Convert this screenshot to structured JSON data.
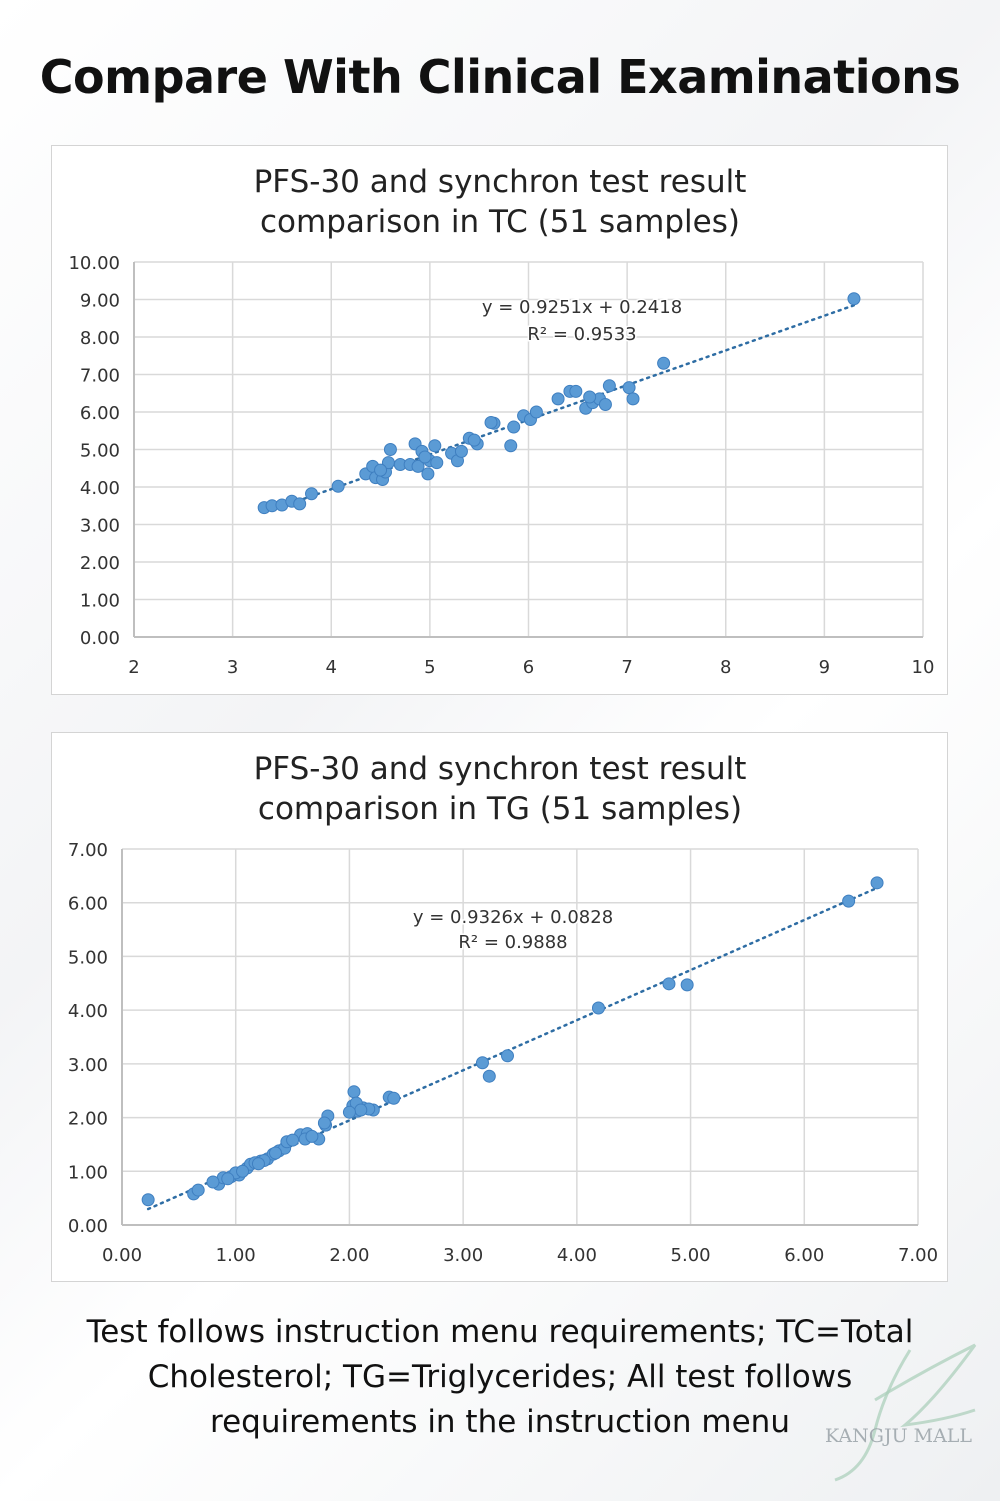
{
  "page_title": "Compare With Clinical Examinations",
  "footer_lines": [
    "Test follows instruction menu requirements; TC=Total",
    "Cholesterol; TG=Triglycerides; All test follows",
    "requirements in the instruction menu"
  ],
  "logo_text": "KANGJU MALL",
  "colors": {
    "point": "#5b9bd5",
    "point_edge": "#3f7fc0",
    "trend": "#2e6da4",
    "grid": "#d9d9d9"
  },
  "chart_data": [
    {
      "type": "scatter",
      "title_lines": [
        "PFS-30 and synchron test result",
        "comparison in TC (51 samples)"
      ],
      "xlim": [
        2,
        10
      ],
      "ylim": [
        0,
        10
      ],
      "xticks": [
        "2",
        "3",
        "4",
        "5",
        "6",
        "7",
        "8",
        "9",
        "10"
      ],
      "yticks": [
        "0.00",
        "1.00",
        "2.00",
        "3.00",
        "4.00",
        "5.00",
        "6.00",
        "7.00",
        "8.00",
        "9.00",
        "10.00"
      ],
      "xtick_values": [
        2,
        3,
        4,
        5,
        6,
        7,
        8,
        9,
        10
      ],
      "ytick_values": [
        0,
        1,
        2,
        3,
        4,
        5,
        6,
        7,
        8,
        9,
        10
      ],
      "grid": true,
      "legend": "none",
      "trendline": {
        "slope": 0.9251,
        "intercept": 0.2418,
        "style": "dotted"
      },
      "equation": "y = 0.9251x + 0.2418",
      "r_squared": "R² = 0.9533",
      "points": [
        [
          3.32,
          3.45
        ],
        [
          3.4,
          3.5
        ],
        [
          3.5,
          3.52
        ],
        [
          3.6,
          3.62
        ],
        [
          3.68,
          3.55
        ],
        [
          3.8,
          3.82
        ],
        [
          4.07,
          4.02
        ],
        [
          4.35,
          4.35
        ],
        [
          4.42,
          4.55
        ],
        [
          4.45,
          4.25
        ],
        [
          4.52,
          4.2
        ],
        [
          4.55,
          4.4
        ],
        [
          4.58,
          4.65
        ],
        [
          4.6,
          5.0
        ],
        [
          4.7,
          4.6
        ],
        [
          4.8,
          4.6
        ],
        [
          4.85,
          5.15
        ],
        [
          4.88,
          4.55
        ],
        [
          4.92,
          4.95
        ],
        [
          4.98,
          4.35
        ],
        [
          5.0,
          4.7
        ],
        [
          5.05,
          5.1
        ],
        [
          5.07,
          4.65
        ],
        [
          5.22,
          4.9
        ],
        [
          5.28,
          4.7
        ],
        [
          5.32,
          4.95
        ],
        [
          5.4,
          5.3
        ],
        [
          5.48,
          5.15
        ],
        [
          5.65,
          5.7
        ],
        [
          5.82,
          5.1
        ],
        [
          5.85,
          5.6
        ],
        [
          5.95,
          5.9
        ],
        [
          6.02,
          5.8
        ],
        [
          6.08,
          6.0
        ],
        [
          6.3,
          6.35
        ],
        [
          6.42,
          6.55
        ],
        [
          6.48,
          6.55
        ],
        [
          6.58,
          6.1
        ],
        [
          6.65,
          6.25
        ],
        [
          6.72,
          6.35
        ],
        [
          6.78,
          6.2
        ],
        [
          6.82,
          6.7
        ],
        [
          7.02,
          6.65
        ],
        [
          7.06,
          6.35
        ],
        [
          7.37,
          7.3
        ],
        [
          9.3,
          9.02
        ],
        [
          4.5,
          4.45
        ],
        [
          4.95,
          4.8
        ],
        [
          5.45,
          5.25
        ],
        [
          6.62,
          6.4
        ],
        [
          5.62,
          5.72
        ]
      ]
    },
    {
      "type": "scatter",
      "title_lines": [
        "PFS-30 and synchron test result",
        "comparison in TG (51 samples)"
      ],
      "xlim": [
        0,
        7
      ],
      "ylim": [
        0,
        7
      ],
      "xticks": [
        "0.00",
        "1.00",
        "2.00",
        "3.00",
        "4.00",
        "5.00",
        "6.00",
        "7.00"
      ],
      "yticks": [
        "0.00",
        "1.00",
        "2.00",
        "3.00",
        "4.00",
        "5.00",
        "6.00",
        "7.00"
      ],
      "xtick_values": [
        0,
        1,
        2,
        3,
        4,
        5,
        6,
        7
      ],
      "ytick_values": [
        0,
        1,
        2,
        3,
        4,
        5,
        6,
        7
      ],
      "grid": true,
      "legend": "none",
      "trendline": {
        "slope": 0.9326,
        "intercept": 0.0828,
        "style": "dotted"
      },
      "equation": "y = 0.9326x + 0.0828",
      "r_squared": "R² = 0.9888",
      "points": [
        [
          0.23,
          0.47
        ],
        [
          0.63,
          0.58
        ],
        [
          0.67,
          0.65
        ],
        [
          0.85,
          0.76
        ],
        [
          0.89,
          0.88
        ],
        [
          0.96,
          0.9
        ],
        [
          1.03,
          0.93
        ],
        [
          1.1,
          1.06
        ],
        [
          1.13,
          1.13
        ],
        [
          1.22,
          1.19
        ],
        [
          1.28,
          1.23
        ],
        [
          1.33,
          1.32
        ],
        [
          1.38,
          1.38
        ],
        [
          1.43,
          1.43
        ],
        [
          1.45,
          1.55
        ],
        [
          1.57,
          1.68
        ],
        [
          1.63,
          1.7
        ],
        [
          1.61,
          1.6
        ],
        [
          1.73,
          1.6
        ],
        [
          1.79,
          1.86
        ],
        [
          1.81,
          2.03
        ],
        [
          2.04,
          2.48
        ],
        [
          2.03,
          2.22
        ],
        [
          2.07,
          2.12
        ],
        [
          2.12,
          2.18
        ],
        [
          2.21,
          2.14
        ],
        [
          2.35,
          2.38
        ],
        [
          2.39,
          2.36
        ],
        [
          3.17,
          3.02
        ],
        [
          3.23,
          2.77
        ],
        [
          3.39,
          3.15
        ],
        [
          4.19,
          4.04
        ],
        [
          4.81,
          4.49
        ],
        [
          4.97,
          4.47
        ],
        [
          6.39,
          6.03
        ],
        [
          6.64,
          6.37
        ],
        [
          0.8,
          0.8
        ],
        [
          1.0,
          0.97
        ],
        [
          1.06,
          1.0
        ],
        [
          1.17,
          1.16
        ],
        [
          1.25,
          1.2
        ],
        [
          1.35,
          1.34
        ],
        [
          1.5,
          1.58
        ],
        [
          1.67,
          1.65
        ],
        [
          1.78,
          1.9
        ],
        [
          2.06,
          2.27
        ],
        [
          2.17,
          2.16
        ],
        [
          2.1,
          2.14
        ],
        [
          1.2,
          1.14
        ],
        [
          0.93,
          0.86
        ],
        [
          2.0,
          2.1
        ]
      ]
    }
  ]
}
